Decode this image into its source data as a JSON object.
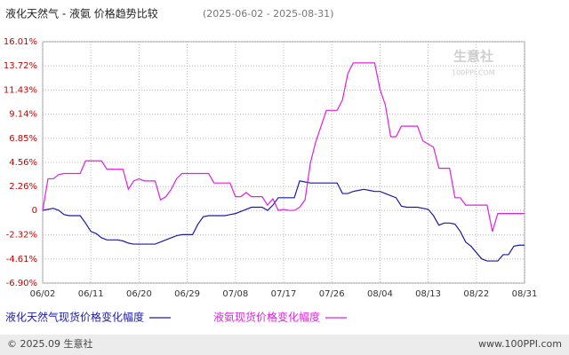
{
  "chart_data": {
    "type": "line",
    "title": "液化天然气 - 液氨 价格趋势比较",
    "subtitle": "(2025-06-02 - 2025-08-31)",
    "watermark": "生意社",
    "watermark_url": "100PPI.COM",
    "footer_left": "© 2025.09 生意社",
    "footer_right": "www.100PPI.com",
    "categories": [
      "06/02",
      null,
      null,
      null,
      null,
      null,
      null,
      null,
      null,
      "06/11",
      null,
      null,
      null,
      null,
      null,
      null,
      null,
      null,
      "06/20",
      null,
      null,
      null,
      null,
      null,
      null,
      null,
      null,
      "06/29",
      null,
      null,
      null,
      null,
      null,
      null,
      null,
      null,
      "07/08",
      null,
      null,
      null,
      null,
      null,
      null,
      null,
      null,
      "07/17",
      null,
      null,
      null,
      null,
      null,
      null,
      null,
      null,
      "07/26",
      null,
      null,
      null,
      null,
      null,
      null,
      null,
      null,
      "08/04",
      null,
      null,
      null,
      null,
      null,
      null,
      null,
      null,
      "08/13",
      null,
      null,
      null,
      null,
      null,
      null,
      null,
      null,
      "08/22",
      null,
      null,
      null,
      null,
      null,
      null,
      null,
      null,
      "08/31"
    ],
    "series": [
      {
        "name": "液化天然气现货价格变化幅度",
        "color": "#1a1aa6",
        "values": [
          0,
          0.1,
          0.2,
          0,
          -0.4,
          -0.5,
          -0.5,
          -0.5,
          -1.2,
          -2.0,
          -2.2,
          -2.6,
          -2.8,
          -2.8,
          -2.8,
          -2.9,
          -3.1,
          -3.2,
          -3.2,
          -3.2,
          -3.2,
          -3.2,
          -3.0,
          -2.8,
          -2.6,
          -2.4,
          -2.3,
          -2.3,
          -2.3,
          -1.3,
          -0.6,
          -0.5,
          -0.5,
          -0.5,
          -0.5,
          -0.4,
          -0.3,
          -0.1,
          0.1,
          0.3,
          0.3,
          0.3,
          0,
          0.5,
          1.2,
          1.2,
          1.2,
          1.2,
          2.8,
          2.7,
          2.6,
          2.6,
          2.6,
          2.6,
          2.6,
          2.6,
          1.6,
          1.6,
          1.8,
          1.9,
          2.0,
          1.9,
          1.8,
          1.8,
          1.6,
          1.4,
          1.2,
          0.4,
          0.3,
          0.3,
          0.3,
          0.2,
          0.1,
          -0.5,
          -1.4,
          -1.2,
          -1.2,
          -1.3,
          -2.0,
          -3.0,
          -3.4,
          -4.0,
          -4.6,
          -4.8,
          -4.8,
          -4.8,
          -4.2,
          -4.2,
          -3.4,
          -3.3,
          -3.3
        ]
      },
      {
        "name": "液氨现货价格变化幅度",
        "color": "#e020e0",
        "values": [
          0,
          3.0,
          3.0,
          3.4,
          3.5,
          3.5,
          3.5,
          3.5,
          4.7,
          4.7,
          4.7,
          4.7,
          3.9,
          3.9,
          3.9,
          3.9,
          2.0,
          2.8,
          3.0,
          2.8,
          2.8,
          2.8,
          1.0,
          1.3,
          2.0,
          3.0,
          3.5,
          3.5,
          3.5,
          3.5,
          3.5,
          3.5,
          2.6,
          2.6,
          2.6,
          2.6,
          1.3,
          1.3,
          1.7,
          1.3,
          1.3,
          1.3,
          0.5,
          1.1,
          0,
          0.1,
          0,
          0,
          0.3,
          1.0,
          4.5,
          6.5,
          8.0,
          9.5,
          9.5,
          9.5,
          10.5,
          13.0,
          14.0,
          14.0,
          14.0,
          14.0,
          14.0,
          11.5,
          10.0,
          7.0,
          7.0,
          8.0,
          8.0,
          8.0,
          8.0,
          6.6,
          6.3,
          6.0,
          4.0,
          4.0,
          4.0,
          1.2,
          1.2,
          0.5,
          0.5,
          0.5,
          0.5,
          0.5,
          -2.0,
          -0.3,
          -0.3,
          -0.3,
          -0.3,
          -0.3,
          -0.3
        ]
      }
    ],
    "ylim": [
      -6.9,
      16.01
    ],
    "yticks": [
      {
        "value": 16.01,
        "label": "16.01%"
      },
      {
        "value": 13.72,
        "label": "13.72%"
      },
      {
        "value": 11.43,
        "label": "11.43%"
      },
      {
        "value": 9.14,
        "label": "9.14%"
      },
      {
        "value": 6.85,
        "label": "6.85%"
      },
      {
        "value": 4.56,
        "label": "4.56%"
      },
      {
        "value": 2.26,
        "label": "2.26%"
      },
      0,
      {
        "value": -2.32,
        "label": "-2.32%"
      },
      {
        "value": -4.61,
        "label": "-4.61%"
      },
      {
        "value": -6.9,
        "label": "-6.90%"
      }
    ],
    "grid": true
  }
}
